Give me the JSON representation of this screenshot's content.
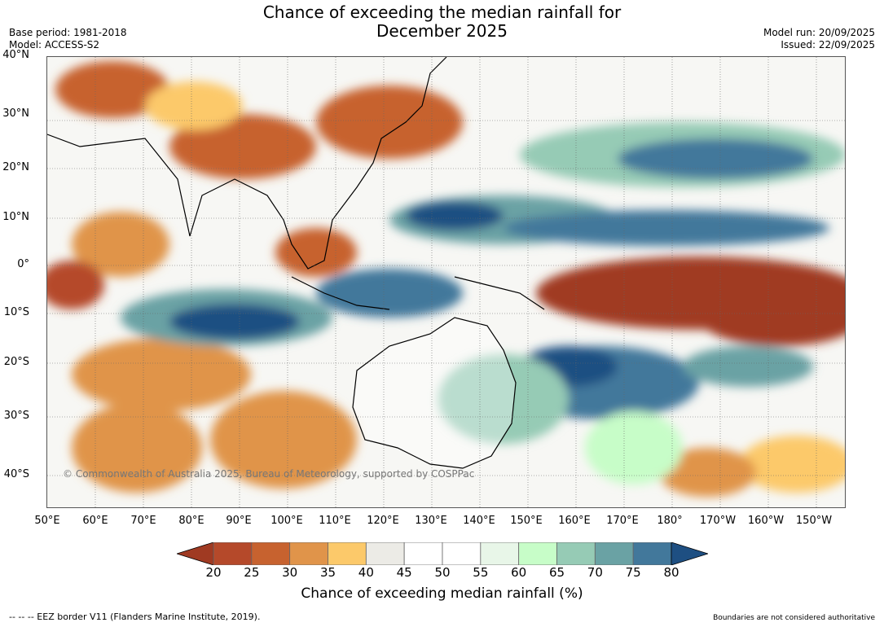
{
  "title_line1": "Chance of exceeding the median rainfall for",
  "title_line2": "December 2025",
  "base_period": "Base period: 1981-2018",
  "model": "Model: ACCESS-S2",
  "model_run": "Model run: 20/09/2025",
  "issued": "Issued: 22/09/2025",
  "copyright": "© Commonwealth of Australia 2025, Bureau of Meteorology, supported by COSPPac",
  "lat_labels": [
    "40°N",
    "30°N",
    "20°N",
    "10°N",
    "0°",
    "10°S",
    "20°S",
    "30°S",
    "40°S"
  ],
  "lon_labels": [
    "50°E",
    "60°E",
    "70°E",
    "80°E",
    "90°E",
    "100°E",
    "110°E",
    "120°E",
    "130°E",
    "140°E",
    "150°E",
    "160°E",
    "170°E",
    "180°",
    "170°W",
    "160°W",
    "150°W"
  ],
  "colorbar": {
    "label": "Chance of exceeding median rainfall (%)",
    "ticks": [
      "20",
      "25",
      "30",
      "35",
      "40",
      "45",
      "50",
      "55",
      "60",
      "65",
      "70",
      "75",
      "80"
    ],
    "colors": [
      "#a03a22",
      "#b5492a",
      "#c7622f",
      "#e0944a",
      "#fcc96a",
      "#ecebe6",
      "#ffffff",
      "#ffffff",
      "#e8f6e8",
      "#c7fdc8",
      "#96cbb5",
      "#6aa2a4",
      "#42789b",
      "#1e4f82"
    ]
  },
  "footer_left": "--  --  -- EEZ border V11 (Flanders Marine Institute, 2019).",
  "footer_right": "Boundaries are not considered authoritative"
}
